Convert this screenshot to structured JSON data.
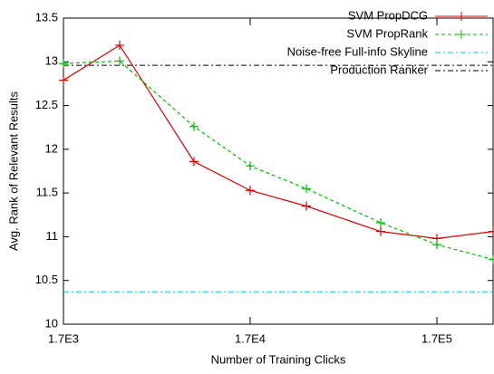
{
  "chart_data": {
    "type": "line",
    "xlabel": "Number of Training Clicks",
    "ylabel": "Avg. Rank of Relevant Results",
    "log_x": true,
    "grid": false,
    "legend": "top-right",
    "x": [
      1700,
      3400,
      8500,
      17000,
      34000,
      85000,
      170000,
      340000
    ],
    "xlim": [
      1700,
      340000
    ],
    "xticks": [
      {
        "value": 1700,
        "label": "1.7E3"
      },
      {
        "value": 17000,
        "label": "1.7E4"
      },
      {
        "value": 170000,
        "label": "1.7E5"
      }
    ],
    "ylim": [
      10,
      13.5
    ],
    "yticks": [
      10,
      10.5,
      11,
      11.5,
      12,
      12.5,
      13,
      13.5
    ],
    "series": [
      {
        "name": "SVM PropDCG",
        "color": "#e00000",
        "dash": "none",
        "values": [
          12.79,
          13.19,
          11.86,
          11.53,
          11.35,
          11.06,
          10.98,
          11.06
        ]
      },
      {
        "name": "SVM PropRank",
        "color": "#00c000",
        "dash": "4 3",
        "values": [
          12.98,
          13.01,
          12.26,
          11.81,
          11.55,
          11.16,
          10.91,
          10.74
        ]
      }
    ],
    "reference_lines": [
      {
        "name": "Noise-free Full-info Skyline",
        "color": "#00d0e0",
        "dash": "6 3 2 3",
        "value": 10.37
      },
      {
        "name": "Production Ranker",
        "color": "#000000",
        "dash": "6 3 2 3",
        "value": 12.96
      }
    ]
  }
}
